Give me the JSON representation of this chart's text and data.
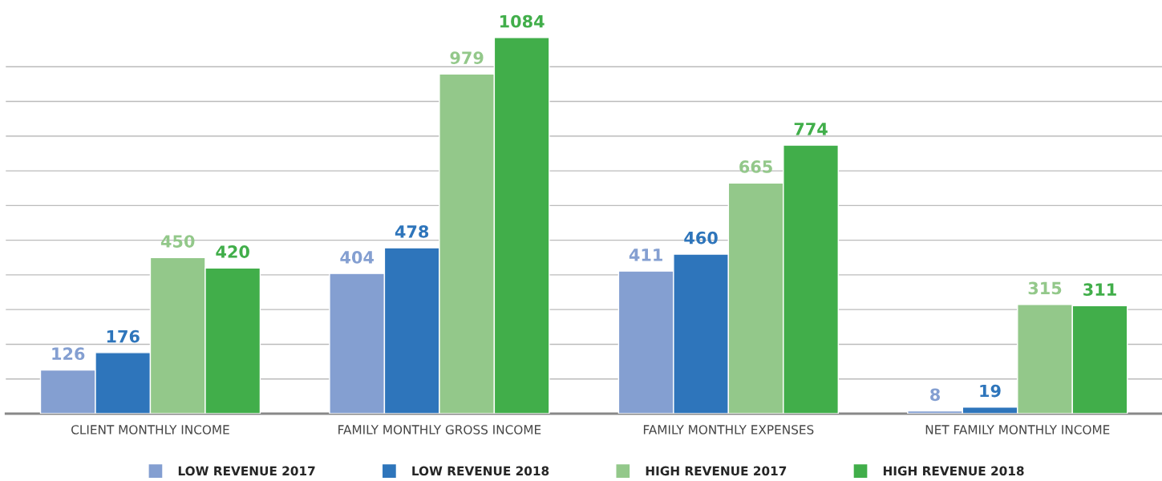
{
  "chart_data": {
    "type": "bar",
    "categories": [
      "CLIENT MONTHLY INCOME",
      "FAMILY MONTHLY GROSS INCOME",
      "FAMILY MONTHLY EXPENSES",
      "NET FAMILY MONTHLY INCOME"
    ],
    "series": [
      {
        "name": "LOW REVENUE 2017",
        "color": "#849fd1",
        "values": [
          126,
          404,
          411,
          8
        ]
      },
      {
        "name": "LOW REVENUE 2018",
        "color": "#2e75bb",
        "values": [
          176,
          478,
          460,
          19
        ]
      },
      {
        "name": "HIGH REVENUE 2017",
        "color": "#93c88a",
        "values": [
          450,
          979,
          665,
          315
        ]
      },
      {
        "name": "HIGH REVENUE 2018",
        "color": "#41ae4a",
        "values": [
          420,
          1084,
          774,
          311
        ]
      }
    ],
    "yticks": [
      {
        "value": 0,
        "label": null
      },
      {
        "value": 100,
        "label": null
      },
      {
        "value": 200,
        "label": null
      },
      {
        "value": 300,
        "label": null
      },
      {
        "value": 400,
        "label": null
      },
      {
        "value": 500,
        "label": null
      },
      {
        "value": 600,
        "label": null
      },
      {
        "value": 700,
        "label": null
      },
      {
        "value": 800,
        "label": null
      },
      {
        "value": 900,
        "label": null
      },
      {
        "value": 1000,
        "label": null
      }
    ],
    "tick_labels": "x",
    "grid": "y",
    "data_labels": true,
    "legend": "bottom",
    "marker": "square"
  }
}
